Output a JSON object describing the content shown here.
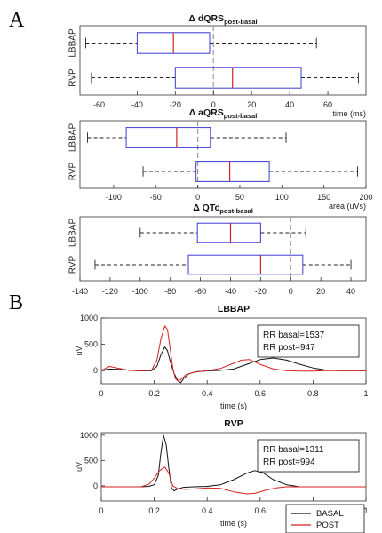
{
  "panels": {
    "a": "A",
    "b": "B"
  },
  "colors": {
    "box": "#3b3bd6",
    "median": "#d62020",
    "whisker": "#222222",
    "zero": "#999999",
    "basal": "#111111",
    "post": "#d62020",
    "axis": "#333333"
  },
  "chart_data": [
    {
      "type": "box",
      "title": "Δ dQRS",
      "title_sub": "post-basal",
      "xlabel": "time (ms)",
      "xlim": [
        -70,
        80
      ],
      "xticks": [
        -60,
        -40,
        -20,
        0,
        20,
        40,
        60
      ],
      "categories": [
        "LBBAP",
        "RVP"
      ],
      "boxes": [
        {
          "name": "LBBAP",
          "min": -67,
          "q1": -40,
          "median": -21,
          "q3": -2,
          "max": 54
        },
        {
          "name": "RVP",
          "min": -64,
          "q1": -20,
          "median": 10,
          "q3": 46,
          "max": 76
        }
      ]
    },
    {
      "type": "box",
      "title": "Δ aQRS",
      "title_sub": "post-basal",
      "xlabel": "area (uVs)",
      "xlim": [
        -140,
        200
      ],
      "xticks": [
        -100,
        -50,
        0,
        50,
        100,
        150,
        200
      ],
      "categories": [
        "LBBAP",
        "RVP"
      ],
      "boxes": [
        {
          "name": "LBBAP",
          "min": -131,
          "q1": -85,
          "median": -25,
          "q3": 15,
          "max": 105
        },
        {
          "name": "RVP",
          "min": -65,
          "q1": -2,
          "median": 38,
          "q3": 85,
          "max": 190
        }
      ]
    },
    {
      "type": "box",
      "title": "Δ QTc",
      "title_sub": "post-basal",
      "xlabel": "",
      "xlim": [
        -140,
        50
      ],
      "xticks": [
        -140,
        -120,
        -100,
        -80,
        -60,
        -40,
        -20,
        0,
        20,
        40
      ],
      "categories": [
        "LBBAP",
        "RVP"
      ],
      "boxes": [
        {
          "name": "LBBAP",
          "min": -100,
          "q1": -62,
          "median": -40,
          "q3": -20,
          "max": 10
        },
        {
          "name": "RVP",
          "min": -130,
          "q1": -68,
          "median": -20,
          "q3": 8,
          "max": 40
        }
      ]
    },
    {
      "type": "line",
      "title": "LBBAP",
      "xlabel": "time (s)",
      "ylabel": "uV",
      "xlim": [
        0,
        1
      ],
      "ylim": [
        -250,
        1000
      ],
      "xticks": [
        0,
        0.2,
        0.4,
        0.6,
        0.8,
        1
      ],
      "xtick_labels": [
        "0",
        "0.2",
        "0.4",
        "0.6",
        "0.8",
        "1"
      ],
      "yticks": [
        0,
        500,
        1000
      ],
      "annotation": [
        "RR basal=1537",
        "RR post=947"
      ],
      "series": [
        {
          "key": "basal",
          "x": [
            0,
            0.03,
            0.06,
            0.1,
            0.15,
            0.19,
            0.21,
            0.225,
            0.24,
            0.25,
            0.26,
            0.275,
            0.29,
            0.3,
            0.31,
            0.33,
            0.36,
            0.4,
            0.45,
            0.5,
            0.55,
            0.6,
            0.65,
            0.7,
            0.75,
            0.8,
            0.85,
            0.9,
            0.95,
            1
          ],
          "y": [
            0,
            30,
            25,
            10,
            -5,
            0,
            80,
            300,
            450,
            380,
            180,
            -50,
            -200,
            -230,
            -160,
            -60,
            -20,
            -5,
            5,
            30,
            120,
            210,
            240,
            200,
            120,
            50,
            10,
            0,
            0,
            0
          ]
        },
        {
          "key": "post",
          "x": [
            0,
            0.03,
            0.06,
            0.1,
            0.15,
            0.19,
            0.21,
            0.225,
            0.24,
            0.25,
            0.26,
            0.27,
            0.28,
            0.29,
            0.3,
            0.32,
            0.35,
            0.4,
            0.45,
            0.5,
            0.53,
            0.56,
            0.6,
            0.65,
            0.7,
            0.75,
            0.8,
            0.85,
            0.9,
            1
          ],
          "y": [
            0,
            80,
            50,
            10,
            -5,
            10,
            200,
            600,
            850,
            780,
            420,
            50,
            -150,
            -200,
            -170,
            -80,
            -30,
            0,
            40,
            140,
            200,
            210,
            120,
            30,
            0,
            -10,
            -10,
            0,
            0,
            0
          ]
        }
      ]
    },
    {
      "type": "line",
      "title": "RVP",
      "xlabel": "time (s)",
      "ylabel": "uV",
      "xlim": [
        0,
        1
      ],
      "ylim": [
        -300,
        1050
      ],
      "xticks": [
        0,
        0.2,
        0.4,
        0.6,
        0.8,
        1
      ],
      "xtick_labels": [
        "0",
        "0.2",
        "0.4",
        "0.6",
        "0.8",
        "1"
      ],
      "yticks": [
        0,
        500,
        1000
      ],
      "annotation": [
        "RR basal=1311",
        "RR post=994"
      ],
      "legend": {
        "basal": "BASAL",
        "post": "POST",
        "position": "bottom-right"
      },
      "series": [
        {
          "key": "basal",
          "x": [
            0,
            0.05,
            0.1,
            0.15,
            0.18,
            0.2,
            0.215,
            0.225,
            0.235,
            0.245,
            0.255,
            0.265,
            0.275,
            0.29,
            0.31,
            0.35,
            0.4,
            0.45,
            0.5,
            0.55,
            0.58,
            0.61,
            0.65,
            0.7,
            0.75,
            0.8,
            0.85,
            0.9,
            1
          ],
          "y": [
            -20,
            -20,
            -20,
            -20,
            -10,
            20,
            200,
            650,
            1000,
            820,
            350,
            -40,
            -100,
            -60,
            -30,
            -20,
            -10,
            20,
            120,
            250,
            300,
            260,
            120,
            20,
            -20,
            -20,
            -20,
            -20,
            -20
          ]
        },
        {
          "key": "post",
          "x": [
            0,
            0.05,
            0.1,
            0.15,
            0.18,
            0.2,
            0.22,
            0.24,
            0.255,
            0.27,
            0.29,
            0.32,
            0.36,
            0.4,
            0.45,
            0.5,
            0.55,
            0.58,
            0.62,
            0.66,
            0.7,
            0.75,
            0.8,
            0.85,
            0.9,
            1
          ],
          "y": [
            -20,
            -20,
            -20,
            -20,
            30,
            150,
            300,
            370,
            250,
            0,
            -60,
            -70,
            -60,
            -40,
            -50,
            -120,
            -160,
            -150,
            -90,
            -40,
            -20,
            -20,
            -20,
            -20,
            -20,
            -20
          ]
        }
      ]
    }
  ]
}
